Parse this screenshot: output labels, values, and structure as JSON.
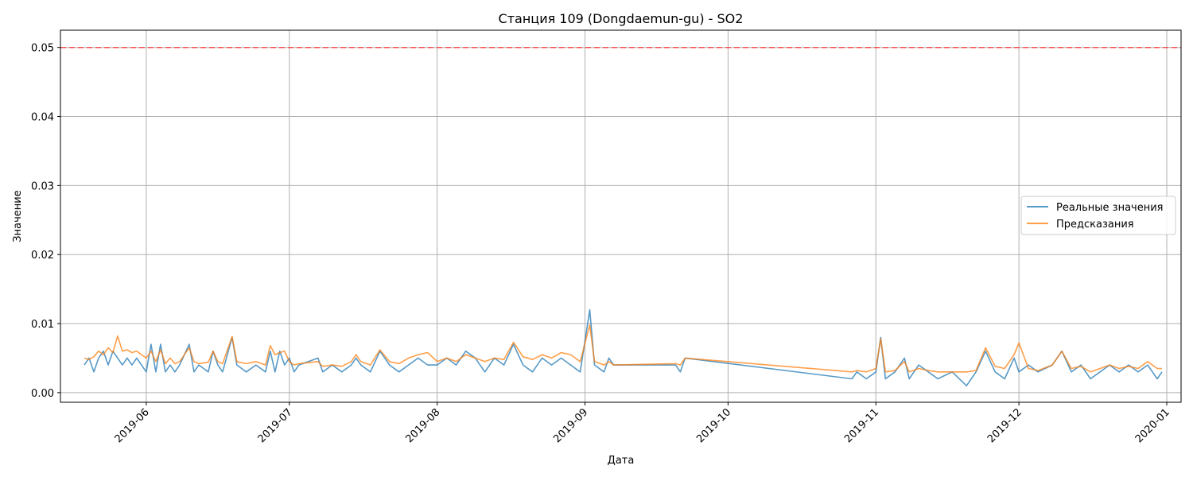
{
  "chart_data": {
    "type": "line",
    "title": "Станция 109 (Dongdaemun-gu) - SO2",
    "xlabel": "Дата",
    "ylabel": "Значение",
    "x_axis_type": "date",
    "xlim": [
      "2019-05-14",
      "2020-01-04"
    ],
    "ylim": [
      -0.0014,
      0.0525
    ],
    "x_ticks": [
      "2019-06",
      "2019-07",
      "2019-08",
      "2019-09",
      "2019-10",
      "2019-11",
      "2019-12",
      "2020-01"
    ],
    "y_ticks": [
      "0.00",
      "0.01",
      "0.02",
      "0.03",
      "0.04",
      "0.05"
    ],
    "grid": true,
    "legend_position": "center-right",
    "threshold": {
      "value": 0.05,
      "color": "#ff3b3b",
      "style": "dashed"
    },
    "series": [
      {
        "name": "Реальные значения",
        "color": "#1f77b4",
        "points": [
          [
            "2019-05-19",
            0.004
          ],
          [
            "2019-05-20",
            0.005
          ],
          [
            "2019-05-21",
            0.003
          ],
          [
            "2019-05-22",
            0.005
          ],
          [
            "2019-05-23",
            0.006
          ],
          [
            "2019-05-24",
            0.004
          ],
          [
            "2019-05-25",
            0.006
          ],
          [
            "2019-05-26",
            0.005
          ],
          [
            "2019-05-27",
            0.004
          ],
          [
            "2019-05-28",
            0.005
          ],
          [
            "2019-05-29",
            0.004
          ],
          [
            "2019-05-30",
            0.005
          ],
          [
            "2019-05-31",
            0.004
          ],
          [
            "2019-06-01",
            0.003
          ],
          [
            "2019-06-02",
            0.007
          ],
          [
            "2019-06-03",
            0.003
          ],
          [
            "2019-06-04",
            0.007
          ],
          [
            "2019-06-05",
            0.003
          ],
          [
            "2019-06-06",
            0.004
          ],
          [
            "2019-06-07",
            0.003
          ],
          [
            "2019-06-08",
            0.004
          ],
          [
            "2019-06-10",
            0.007
          ],
          [
            "2019-06-11",
            0.003
          ],
          [
            "2019-06-12",
            0.004
          ],
          [
            "2019-06-14",
            0.003
          ],
          [
            "2019-06-15",
            0.006
          ],
          [
            "2019-06-16",
            0.004
          ],
          [
            "2019-06-17",
            0.003
          ],
          [
            "2019-06-19",
            0.008
          ],
          [
            "2019-06-20",
            0.004
          ],
          [
            "2019-06-22",
            0.003
          ],
          [
            "2019-06-24",
            0.004
          ],
          [
            "2019-06-26",
            0.003
          ],
          [
            "2019-06-27",
            0.006
          ],
          [
            "2019-06-28",
            0.003
          ],
          [
            "2019-06-29",
            0.006
          ],
          [
            "2019-06-30",
            0.004
          ],
          [
            "2019-07-01",
            0.005
          ],
          [
            "2019-07-02",
            0.003
          ],
          [
            "2019-07-03",
            0.004
          ],
          [
            "2019-07-07",
            0.005
          ],
          [
            "2019-07-08",
            0.003
          ],
          [
            "2019-07-10",
            0.004
          ],
          [
            "2019-07-12",
            0.003
          ],
          [
            "2019-07-14",
            0.004
          ],
          [
            "2019-07-15",
            0.005
          ],
          [
            "2019-07-16",
            0.004
          ],
          [
            "2019-07-18",
            0.003
          ],
          [
            "2019-07-20",
            0.006
          ],
          [
            "2019-07-22",
            0.004
          ],
          [
            "2019-07-24",
            0.003
          ],
          [
            "2019-07-26",
            0.004
          ],
          [
            "2019-07-28",
            0.005
          ],
          [
            "2019-07-30",
            0.004
          ],
          [
            "2019-08-01",
            0.004
          ],
          [
            "2019-08-03",
            0.005
          ],
          [
            "2019-08-05",
            0.004
          ],
          [
            "2019-08-07",
            0.006
          ],
          [
            "2019-08-09",
            0.005
          ],
          [
            "2019-08-11",
            0.003
          ],
          [
            "2019-08-13",
            0.005
          ],
          [
            "2019-08-15",
            0.004
          ],
          [
            "2019-08-17",
            0.007
          ],
          [
            "2019-08-19",
            0.004
          ],
          [
            "2019-08-21",
            0.003
          ],
          [
            "2019-08-23",
            0.005
          ],
          [
            "2019-08-25",
            0.004
          ],
          [
            "2019-08-27",
            0.005
          ],
          [
            "2019-08-29",
            0.004
          ],
          [
            "2019-08-31",
            0.003
          ],
          [
            "2019-09-02",
            0.012
          ],
          [
            "2019-09-03",
            0.004
          ],
          [
            "2019-09-05",
            0.003
          ],
          [
            "2019-09-06",
            0.005
          ],
          [
            "2019-09-07",
            0.004
          ],
          [
            "2019-09-20",
            0.004
          ],
          [
            "2019-09-21",
            0.003
          ],
          [
            "2019-09-22",
            0.005
          ],
          [
            "2019-10-27",
            0.002
          ],
          [
            "2019-10-28",
            0.003
          ],
          [
            "2019-10-30",
            0.002
          ],
          [
            "2019-11-01",
            0.003
          ],
          [
            "2019-11-02",
            0.008
          ],
          [
            "2019-11-03",
            0.002
          ],
          [
            "2019-11-05",
            0.003
          ],
          [
            "2019-11-07",
            0.005
          ],
          [
            "2019-11-08",
            0.002
          ],
          [
            "2019-11-10",
            0.004
          ],
          [
            "2019-11-12",
            0.003
          ],
          [
            "2019-11-14",
            0.002
          ],
          [
            "2019-11-17",
            0.003
          ],
          [
            "2019-11-20",
            0.001
          ],
          [
            "2019-11-22",
            0.003
          ],
          [
            "2019-11-24",
            0.006
          ],
          [
            "2019-11-26",
            0.003
          ],
          [
            "2019-11-28",
            0.002
          ],
          [
            "2019-11-30",
            0.005
          ],
          [
            "2019-12-01",
            0.003
          ],
          [
            "2019-12-03",
            0.004
          ],
          [
            "2019-12-05",
            0.003
          ],
          [
            "2019-12-08",
            0.004
          ],
          [
            "2019-12-10",
            0.006
          ],
          [
            "2019-12-12",
            0.003
          ],
          [
            "2019-12-14",
            0.004
          ],
          [
            "2019-12-16",
            0.002
          ],
          [
            "2019-12-18",
            0.003
          ],
          [
            "2019-12-20",
            0.004
          ],
          [
            "2019-12-22",
            0.003
          ],
          [
            "2019-12-24",
            0.004
          ],
          [
            "2019-12-26",
            0.003
          ],
          [
            "2019-12-28",
            0.004
          ],
          [
            "2019-12-30",
            0.002
          ],
          [
            "2019-12-31",
            0.003
          ]
        ]
      },
      {
        "name": "Предсказания",
        "color": "#ff7f0e",
        "points": [
          [
            "2019-05-19",
            0.005
          ],
          [
            "2019-05-20",
            0.0048
          ],
          [
            "2019-05-21",
            0.0052
          ],
          [
            "2019-05-22",
            0.006
          ],
          [
            "2019-05-23",
            0.0055
          ],
          [
            "2019-05-24",
            0.0065
          ],
          [
            "2019-05-25",
            0.0058
          ],
          [
            "2019-05-26",
            0.0082
          ],
          [
            "2019-05-27",
            0.006
          ],
          [
            "2019-05-28",
            0.0062
          ],
          [
            "2019-05-29",
            0.0058
          ],
          [
            "2019-05-30",
            0.006
          ],
          [
            "2019-05-31",
            0.0055
          ],
          [
            "2019-06-01",
            0.005
          ],
          [
            "2019-06-02",
            0.006
          ],
          [
            "2019-06-03",
            0.0045
          ],
          [
            "2019-06-04",
            0.0062
          ],
          [
            "2019-06-05",
            0.0042
          ],
          [
            "2019-06-06",
            0.005
          ],
          [
            "2019-06-07",
            0.0042
          ],
          [
            "2019-06-08",
            0.0045
          ],
          [
            "2019-06-10",
            0.0065
          ],
          [
            "2019-06-11",
            0.0045
          ],
          [
            "2019-06-12",
            0.0042
          ],
          [
            "2019-06-14",
            0.0044
          ],
          [
            "2019-06-15",
            0.006
          ],
          [
            "2019-06-16",
            0.0045
          ],
          [
            "2019-06-17",
            0.0042
          ],
          [
            "2019-06-19",
            0.0081
          ],
          [
            "2019-06-20",
            0.0045
          ],
          [
            "2019-06-22",
            0.0042
          ],
          [
            "2019-06-24",
            0.0045
          ],
          [
            "2019-06-26",
            0.004
          ],
          [
            "2019-06-27",
            0.0068
          ],
          [
            "2019-06-28",
            0.0055
          ],
          [
            "2019-06-29",
            0.0058
          ],
          [
            "2019-06-30",
            0.006
          ],
          [
            "2019-07-01",
            0.0045
          ],
          [
            "2019-07-02",
            0.004
          ],
          [
            "2019-07-03",
            0.0042
          ],
          [
            "2019-07-07",
            0.0045
          ],
          [
            "2019-07-08",
            0.0038
          ],
          [
            "2019-07-10",
            0.004
          ],
          [
            "2019-07-12",
            0.0038
          ],
          [
            "2019-07-14",
            0.0045
          ],
          [
            "2019-07-15",
            0.0055
          ],
          [
            "2019-07-16",
            0.0045
          ],
          [
            "2019-07-18",
            0.004
          ],
          [
            "2019-07-20",
            0.0062
          ],
          [
            "2019-07-22",
            0.0045
          ],
          [
            "2019-07-24",
            0.0042
          ],
          [
            "2019-07-26",
            0.005
          ],
          [
            "2019-07-28",
            0.0055
          ],
          [
            "2019-07-30",
            0.0058
          ],
          [
            "2019-08-01",
            0.0045
          ],
          [
            "2019-08-03",
            0.005
          ],
          [
            "2019-08-05",
            0.0045
          ],
          [
            "2019-08-07",
            0.0055
          ],
          [
            "2019-08-09",
            0.005
          ],
          [
            "2019-08-11",
            0.0045
          ],
          [
            "2019-08-13",
            0.005
          ],
          [
            "2019-08-15",
            0.0048
          ],
          [
            "2019-08-17",
            0.0073
          ],
          [
            "2019-08-19",
            0.0052
          ],
          [
            "2019-08-21",
            0.0048
          ],
          [
            "2019-08-23",
            0.0055
          ],
          [
            "2019-08-25",
            0.005
          ],
          [
            "2019-08-27",
            0.0058
          ],
          [
            "2019-08-29",
            0.0055
          ],
          [
            "2019-08-31",
            0.0045
          ],
          [
            "2019-09-02",
            0.0098
          ],
          [
            "2019-09-03",
            0.0045
          ],
          [
            "2019-09-05",
            0.004
          ],
          [
            "2019-09-06",
            0.0045
          ],
          [
            "2019-09-07",
            0.004
          ],
          [
            "2019-09-20",
            0.0042
          ],
          [
            "2019-09-21",
            0.004
          ],
          [
            "2019-09-22",
            0.005
          ],
          [
            "2019-10-27",
            0.003
          ],
          [
            "2019-10-28",
            0.0032
          ],
          [
            "2019-10-30",
            0.003
          ],
          [
            "2019-11-01",
            0.0035
          ],
          [
            "2019-11-02",
            0.0078
          ],
          [
            "2019-11-03",
            0.003
          ],
          [
            "2019-11-05",
            0.0032
          ],
          [
            "2019-11-07",
            0.0045
          ],
          [
            "2019-11-08",
            0.003
          ],
          [
            "2019-11-10",
            0.0035
          ],
          [
            "2019-11-12",
            0.0032
          ],
          [
            "2019-11-14",
            0.003
          ],
          [
            "2019-11-17",
            0.003
          ],
          [
            "2019-11-20",
            0.003
          ],
          [
            "2019-11-22",
            0.0032
          ],
          [
            "2019-11-24",
            0.0065
          ],
          [
            "2019-11-26",
            0.0038
          ],
          [
            "2019-11-28",
            0.0035
          ],
          [
            "2019-11-30",
            0.0055
          ],
          [
            "2019-12-01",
            0.0072
          ],
          [
            "2019-12-03",
            0.0035
          ],
          [
            "2019-12-05",
            0.0032
          ],
          [
            "2019-12-08",
            0.004
          ],
          [
            "2019-12-10",
            0.006
          ],
          [
            "2019-12-12",
            0.0035
          ],
          [
            "2019-12-14",
            0.0038
          ],
          [
            "2019-12-16",
            0.003
          ],
          [
            "2019-12-18",
            0.0035
          ],
          [
            "2019-12-20",
            0.004
          ],
          [
            "2019-12-22",
            0.0035
          ],
          [
            "2019-12-24",
            0.0038
          ],
          [
            "2019-12-26",
            0.0035
          ],
          [
            "2019-12-28",
            0.0045
          ],
          [
            "2019-12-30",
            0.0035
          ],
          [
            "2019-12-31",
            0.0035
          ]
        ]
      }
    ]
  }
}
